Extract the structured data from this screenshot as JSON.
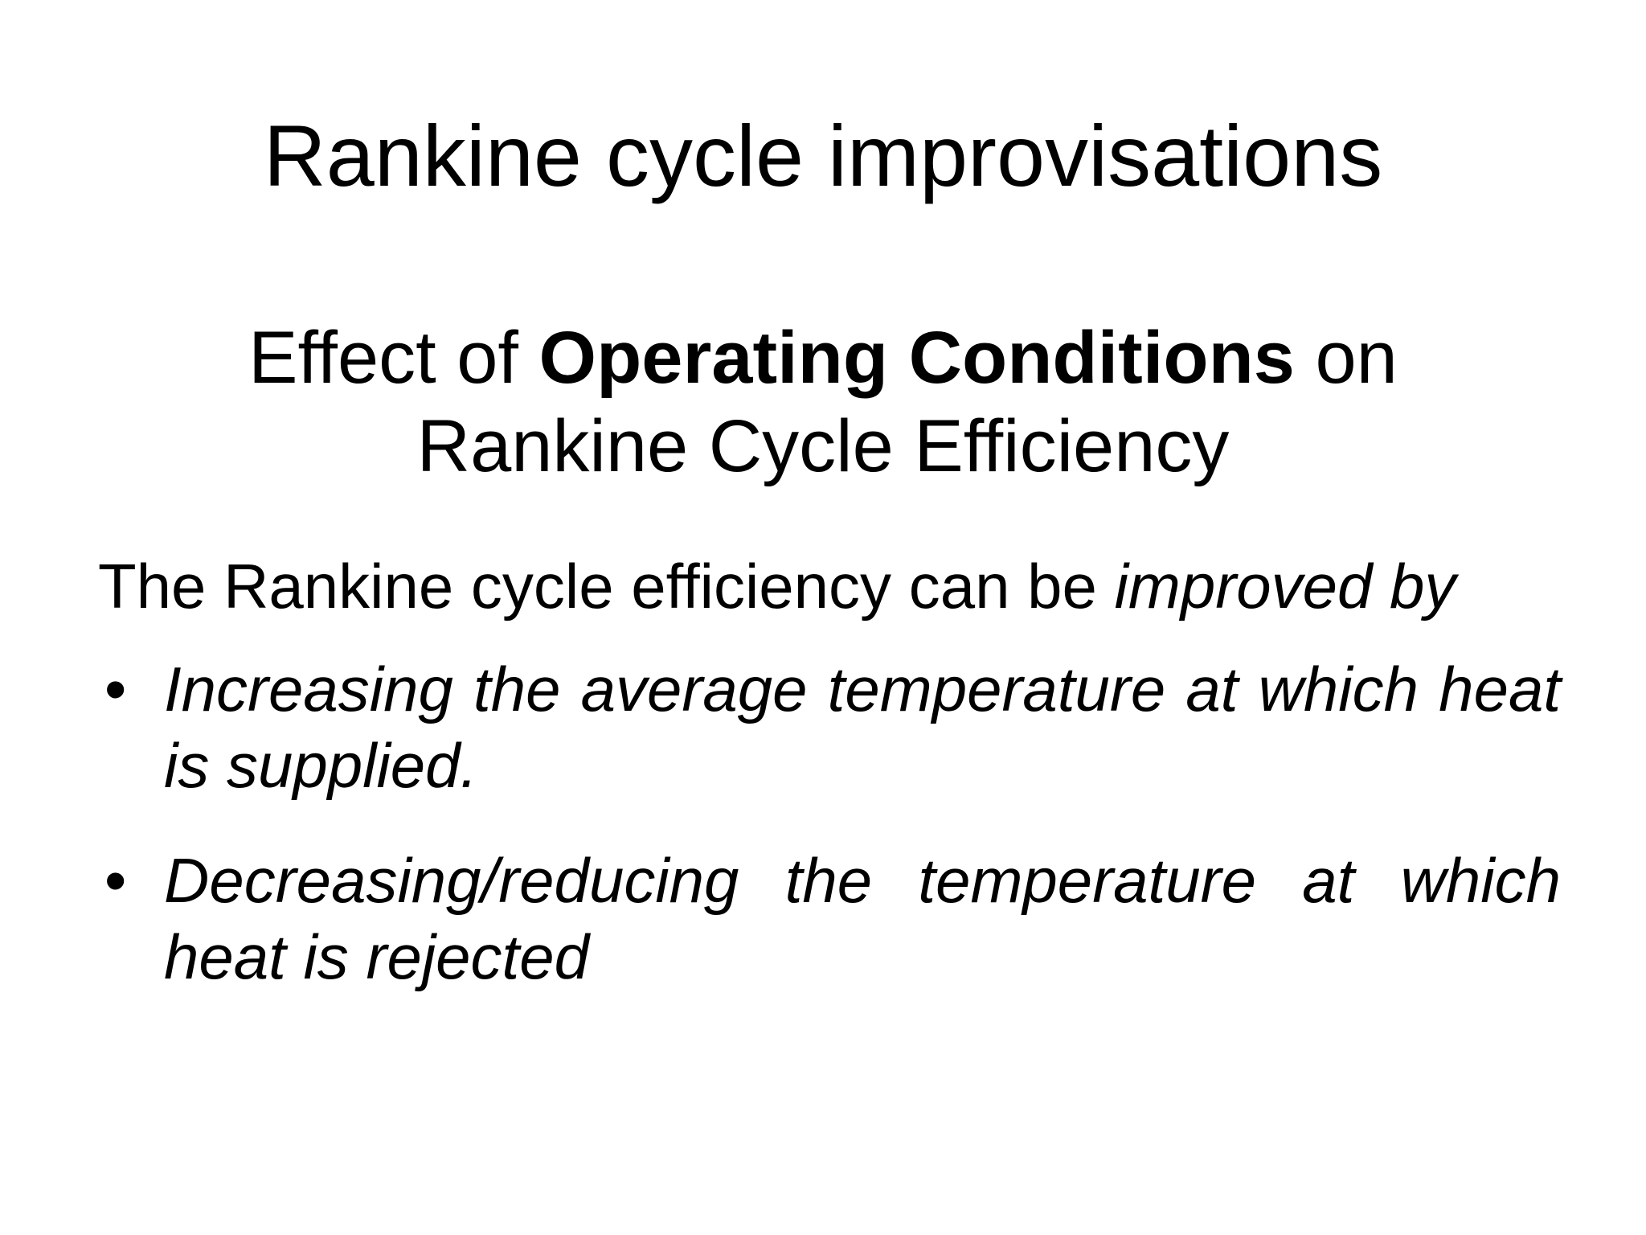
{
  "slide": {
    "title": "Rankine cycle improvisations",
    "subtitle": {
      "prefix": "Effect of ",
      "bold": "Operating Conditions",
      "suffix": " on Rankine Cycle Efficiency"
    },
    "intro": {
      "text": "The Rankine cycle efficiency can be ",
      "italic": "improved by"
    },
    "bullet_symbol": "•",
    "bullets": [
      "Increasing the average temperature at which heat is supplied.",
      "Decreasing/reducing the temperature at which heat is rejected"
    ]
  }
}
